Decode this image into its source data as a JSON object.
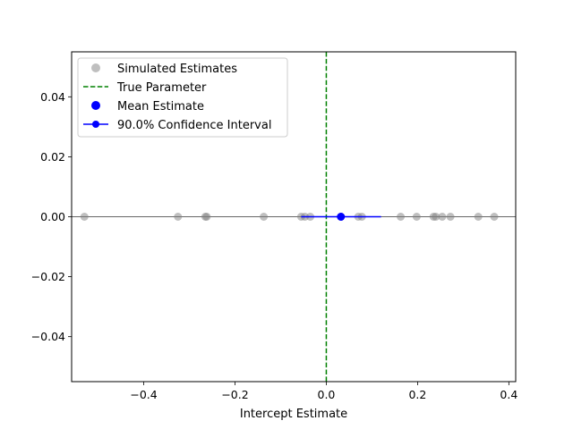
{
  "chart_data": {
    "type": "scatter",
    "xlabel": "Intercept Estimate",
    "ylabel": "",
    "xlim": [
      -0.558,
      0.415
    ],
    "ylim": [
      -0.055,
      0.055
    ],
    "xticks": [
      {
        "value": -0.4,
        "label": "−0.4"
      },
      {
        "value": -0.2,
        "label": "−0.2"
      },
      {
        "value": 0.0,
        "label": "0.0"
      },
      {
        "value": 0.2,
        "label": "0.2"
      },
      {
        "value": 0.4,
        "label": "0.4"
      }
    ],
    "yticks": [
      {
        "value": 0.04,
        "label": "0.04"
      },
      {
        "value": 0.02,
        "label": "0.02"
      },
      {
        "value": 0.0,
        "label": "0.00"
      },
      {
        "value": -0.02,
        "label": "−0.02"
      },
      {
        "value": -0.04,
        "label": "−0.04"
      }
    ],
    "grid": false,
    "legend_position": "top-left",
    "simulated_estimates": {
      "name": "Simulated Estimates",
      "color": "#808080",
      "x": [
        -0.53,
        -0.325,
        -0.265,
        -0.262,
        -0.137,
        -0.055,
        -0.047,
        -0.035,
        0.032,
        0.07,
        0.078,
        0.163,
        0.198,
        0.235,
        0.24,
        0.254,
        0.272,
        0.333,
        0.368
      ],
      "y": 0
    },
    "true_parameter": {
      "name": "True Parameter",
      "value": 0.0,
      "color": "#008000"
    },
    "mean_estimate": {
      "name": "Mean Estimate",
      "x": 0.032,
      "y": 0,
      "color": "#0000ff"
    },
    "confidence_interval": {
      "name": "90.0% Confidence Interval",
      "lower": -0.055,
      "upper": 0.12,
      "color": "#0000ff"
    },
    "reference_line_y": 0
  }
}
